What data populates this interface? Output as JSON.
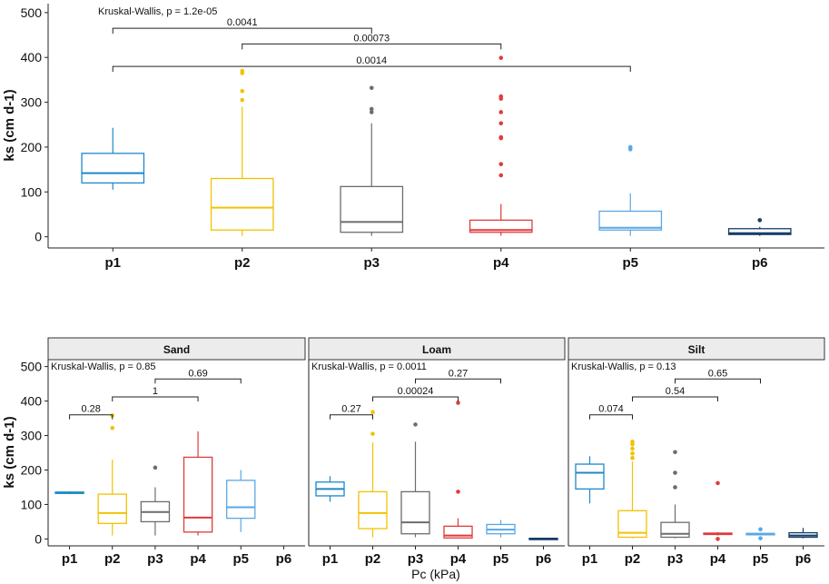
{
  "colors": {
    "p1": "#1f88c9",
    "p2": "#f2c200",
    "p3": "#6d6d6d",
    "p4": "#e03b3b",
    "p5": "#5aa7e6",
    "p6": "#143d66",
    "axis": "#222222",
    "strip_fill": "#ececec"
  },
  "chart_data": [
    {
      "type": "box",
      "title": "",
      "xlabel": "",
      "ylabel": "ks (cm d-1)",
      "ylim": [
        -25,
        520
      ],
      "yticks": [
        0,
        100,
        200,
        300,
        400,
        500
      ],
      "categories": [
        "p1",
        "p2",
        "p3",
        "p4",
        "p5",
        "p6"
      ],
      "annotation": "Kruskal-Wallis, p = 1.2e-05",
      "boxes": [
        {
          "cat": "p1",
          "lw": 105,
          "q1": 120,
          "med": 142,
          "q3": 186,
          "uw": 243,
          "out": []
        },
        {
          "cat": "p2",
          "lw": 2,
          "q1": 15,
          "med": 65,
          "q3": 130,
          "uw": 290,
          "out": [
            305,
            325,
            365,
            370
          ]
        },
        {
          "cat": "p3",
          "lw": 2,
          "q1": 10,
          "med": 33,
          "q3": 112,
          "uw": 253,
          "out": [
            278,
            285,
            332
          ]
        },
        {
          "cat": "p4",
          "lw": 2,
          "q1": 10,
          "med": 15,
          "q3": 37,
          "uw": 73,
          "out": [
            137,
            162,
            220,
            222,
            253,
            278,
            308,
            313,
            399
          ]
        },
        {
          "cat": "p5",
          "lw": 2,
          "q1": 15,
          "med": 20,
          "q3": 57,
          "uw": 97,
          "out": [
            195,
            200
          ]
        },
        {
          "cat": "p6",
          "lw": 2,
          "q1": 5,
          "med": 8,
          "q3": 18,
          "uw": 22,
          "out": [
            37
          ]
        }
      ],
      "comparisons": [
        {
          "from": "p1",
          "to": "p3",
          "y": 465,
          "label": "0.0041"
        },
        {
          "from": "p2",
          "to": "p4",
          "y": 430,
          "label": "0.00073"
        },
        {
          "from": "p1",
          "to": "p5",
          "y": 380,
          "label": "0.0014"
        }
      ]
    },
    {
      "type": "box",
      "panel": "Sand",
      "ylabel": "ks (cm d-1)",
      "xlabel": "Pc (kPa)",
      "ylim": [
        -20,
        520
      ],
      "yticks": [
        0,
        100,
        200,
        300,
        400,
        500
      ],
      "categories": [
        "p1",
        "p2",
        "p3",
        "p4",
        "p5",
        "p6"
      ],
      "annotation": "Kruskal-Wallis, p = 0.85",
      "boxes": [
        {
          "cat": "p1",
          "lw": 130,
          "q1": 132,
          "med": 134,
          "q3": 136,
          "uw": 138,
          "out": []
        },
        {
          "cat": "p2",
          "lw": 10,
          "q1": 45,
          "med": 75,
          "q3": 130,
          "uw": 230,
          "out": [
            322,
            358
          ]
        },
        {
          "cat": "p3",
          "lw": 10,
          "q1": 50,
          "med": 78,
          "q3": 108,
          "uw": 150,
          "out": [
            207
          ]
        },
        {
          "cat": "p4",
          "lw": 10,
          "q1": 20,
          "med": 62,
          "q3": 237,
          "uw": 312,
          "out": []
        },
        {
          "cat": "p5",
          "lw": 20,
          "q1": 60,
          "med": 92,
          "q3": 170,
          "uw": 200,
          "out": []
        }
      ],
      "comparisons": [
        {
          "from": "p1",
          "to": "p2",
          "y": 360,
          "label": "0.28"
        },
        {
          "from": "p2",
          "to": "p4",
          "y": 412,
          "label": "1"
        },
        {
          "from": "p3",
          "to": "p5",
          "y": 464,
          "label": "0.69"
        }
      ]
    },
    {
      "type": "box",
      "panel": "Loam",
      "ylim": [
        -20,
        520
      ],
      "categories": [
        "p1",
        "p2",
        "p3",
        "p4",
        "p5",
        "p6"
      ],
      "annotation": "Kruskal-Wallis, p = 0.0011",
      "boxes": [
        {
          "cat": "p1",
          "lw": 108,
          "q1": 125,
          "med": 145,
          "q3": 165,
          "uw": 182,
          "out": []
        },
        {
          "cat": "p2",
          "lw": 5,
          "q1": 30,
          "med": 75,
          "q3": 137,
          "uw": 280,
          "out": [
            305,
            368
          ]
        },
        {
          "cat": "p3",
          "lw": 5,
          "q1": 15,
          "med": 48,
          "q3": 137,
          "uw": 282,
          "out": [
            332
          ]
        },
        {
          "cat": "p4",
          "lw": 3,
          "q1": 3,
          "med": 10,
          "q3": 37,
          "uw": 60,
          "out": [
            137,
            395
          ]
        },
        {
          "cat": "p5",
          "lw": 5,
          "q1": 15,
          "med": 27,
          "q3": 42,
          "uw": 55,
          "out": []
        },
        {
          "cat": "p6",
          "lw": 0,
          "q1": 0,
          "med": 1,
          "q3": 2,
          "uw": 3,
          "out": []
        }
      ],
      "comparisons": [
        {
          "from": "p1",
          "to": "p2",
          "y": 360,
          "label": "0.27"
        },
        {
          "from": "p2",
          "to": "p4",
          "y": 412,
          "label": "0.00024"
        },
        {
          "from": "p3",
          "to": "p5",
          "y": 464,
          "label": "0.27"
        }
      ]
    },
    {
      "type": "box",
      "panel": "Silt",
      "ylim": [
        -20,
        520
      ],
      "categories": [
        "p1",
        "p2",
        "p3",
        "p4",
        "p5",
        "p6"
      ],
      "annotation": "Kruskal-Wallis, p = 0.13",
      "boxes": [
        {
          "cat": "p1",
          "lw": 103,
          "q1": 145,
          "med": 192,
          "q3": 217,
          "uw": 240,
          "out": []
        },
        {
          "cat": "p2",
          "lw": 2,
          "q1": 5,
          "med": 18,
          "q3": 82,
          "uw": 225,
          "out": [
            235,
            248,
            262,
            275,
            282
          ]
        },
        {
          "cat": "p3",
          "lw": 2,
          "q1": 5,
          "med": 15,
          "q3": 48,
          "uw": 100,
          "out": [
            150,
            192,
            252
          ]
        },
        {
          "cat": "p4",
          "lw": 10,
          "q1": 13,
          "med": 15,
          "q3": 17,
          "uw": 20,
          "out": [
            0,
            162
          ]
        },
        {
          "cat": "p5",
          "lw": 12,
          "q1": 14,
          "med": 15,
          "q3": 16,
          "uw": 18,
          "out": [
            2,
            28
          ]
        },
        {
          "cat": "p6",
          "lw": 2,
          "q1": 5,
          "med": 10,
          "q3": 18,
          "uw": 32,
          "out": []
        }
      ],
      "comparisons": [
        {
          "from": "p1",
          "to": "p2",
          "y": 360,
          "label": "0.074"
        },
        {
          "from": "p2",
          "to": "p4",
          "y": 412,
          "label": "0.54"
        },
        {
          "from": "p3",
          "to": "p5",
          "y": 464,
          "label": "0.65"
        }
      ]
    }
  ]
}
